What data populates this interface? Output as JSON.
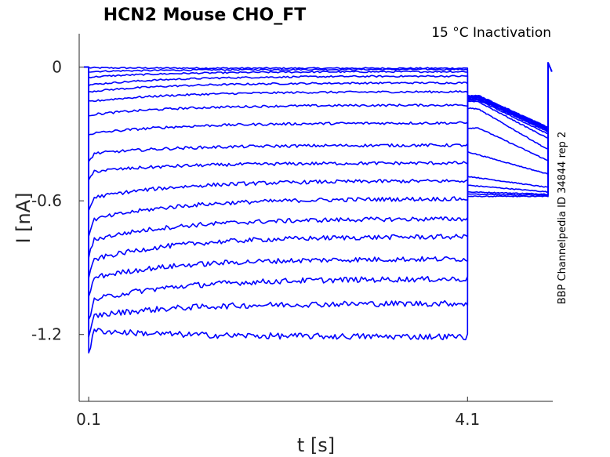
{
  "chart_data": {
    "type": "line",
    "title": "HCN2  Mouse  CHO_FT",
    "annotation": "15 °C  Inactivation",
    "side_label": "BBP Channelpedia ID 34844 rep 2",
    "xlabel": "t [s]",
    "ylabel": "I [nA]",
    "xlim": [
      0.0,
      5.0
    ],
    "ylim": [
      -1.5,
      0.15
    ],
    "x_ticks": [
      0.1,
      4.1
    ],
    "x_tick_labels": [
      "0.1",
      "4.1"
    ],
    "y_ticks": [
      0,
      -0.6,
      -1.2
    ],
    "y_tick_labels": [
      "0",
      "-0.6",
      "-1.2"
    ],
    "grid": false,
    "line_color": "#0000ff",
    "protocol": {
      "holding_current": 0.0,
      "step_start": 0.1,
      "step_end": 4.1,
      "test_end": 5.0
    },
    "series": [
      {
        "initial": -0.003,
        "steady": -0.005,
        "test_start": -0.58,
        "test_end": -0.58
      },
      {
        "initial": -0.02,
        "steady": -0.01,
        "test_start": -0.57,
        "test_end": -0.575
      },
      {
        "initial": -0.045,
        "steady": -0.02,
        "test_start": -0.56,
        "test_end": -0.57
      },
      {
        "initial": -0.08,
        "steady": -0.04,
        "test_start": -0.53,
        "test_end": -0.56
      },
      {
        "initial": -0.11,
        "steady": -0.07,
        "test_start": -0.49,
        "test_end": -0.54
      },
      {
        "initial": -0.155,
        "steady": -0.11,
        "test_start": -0.38,
        "test_end": -0.48
      },
      {
        "initial": -0.215,
        "steady": -0.17,
        "test_start": -0.25,
        "test_end": -0.42
      },
      {
        "initial": -0.3,
        "steady": -0.25,
        "test_start": -0.16,
        "test_end": -0.37
      },
      {
        "initial": -0.39,
        "steady": -0.35,
        "test_start": -0.13,
        "test_end": -0.32
      },
      {
        "initial": -0.47,
        "steady": -0.43,
        "test_start": -0.125,
        "test_end": -0.3
      },
      {
        "initial": -0.59,
        "steady": -0.51,
        "test_start": -0.12,
        "test_end": -0.29
      },
      {
        "initial": -0.69,
        "steady": -0.59,
        "test_start": -0.12,
        "test_end": -0.285
      },
      {
        "initial": -0.78,
        "steady": -0.68,
        "test_start": -0.115,
        "test_end": -0.28
      },
      {
        "initial": -0.87,
        "steady": -0.76,
        "test_start": -0.115,
        "test_end": -0.28
      },
      {
        "initial": -0.95,
        "steady": -0.86,
        "test_start": -0.11,
        "test_end": -0.275
      },
      {
        "initial": -1.05,
        "steady": -0.95,
        "test_start": -0.11,
        "test_end": -0.275
      },
      {
        "initial": -1.12,
        "steady": -1.06,
        "test_start": -0.11,
        "test_end": -0.27
      },
      {
        "initial": -1.18,
        "steady": -1.21,
        "test_start": -0.105,
        "test_end": -0.27
      }
    ]
  }
}
